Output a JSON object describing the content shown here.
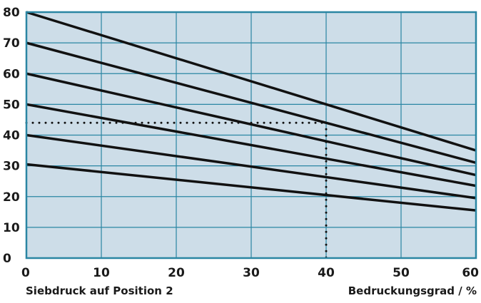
{
  "chart_data": {
    "type": "line",
    "title": "",
    "xlabel": "Bedruckungsgrad / %",
    "ylabel": "",
    "caption": "Siebdruck auf Position 2",
    "xlim": [
      0,
      60
    ],
    "ylim": [
      0,
      80
    ],
    "x_ticks": [
      "0",
      "10",
      "20",
      "30",
      "40",
      "50",
      "60"
    ],
    "y_ticks": [
      "0",
      "10",
      "20",
      "30",
      "40",
      "50",
      "60",
      "70",
      "80"
    ],
    "grid": true,
    "series": [
      {
        "points": [
          [
            0,
            80
          ],
          [
            60,
            35
          ]
        ]
      },
      {
        "points": [
          [
            0,
            70
          ],
          [
            60,
            31
          ]
        ]
      },
      {
        "points": [
          [
            0,
            60
          ],
          [
            60,
            27
          ]
        ]
      },
      {
        "points": [
          [
            0,
            50
          ],
          [
            60,
            23.5
          ]
        ]
      },
      {
        "points": [
          [
            0,
            40
          ],
          [
            60,
            19.5
          ]
        ]
      },
      {
        "points": [
          [
            0,
            30.5
          ],
          [
            60,
            15.5
          ]
        ]
      }
    ],
    "reference_lines": [
      {
        "style": "dotted",
        "points": [
          [
            0,
            44
          ],
          [
            40,
            44
          ]
        ]
      },
      {
        "style": "dotted",
        "points": [
          [
            40,
            44
          ],
          [
            40,
            0
          ]
        ]
      }
    ],
    "colors": {
      "plot_background": "#cddde8",
      "grid": "#2a86a3",
      "series_line": "#111111",
      "text": "#1a1a1a"
    }
  }
}
